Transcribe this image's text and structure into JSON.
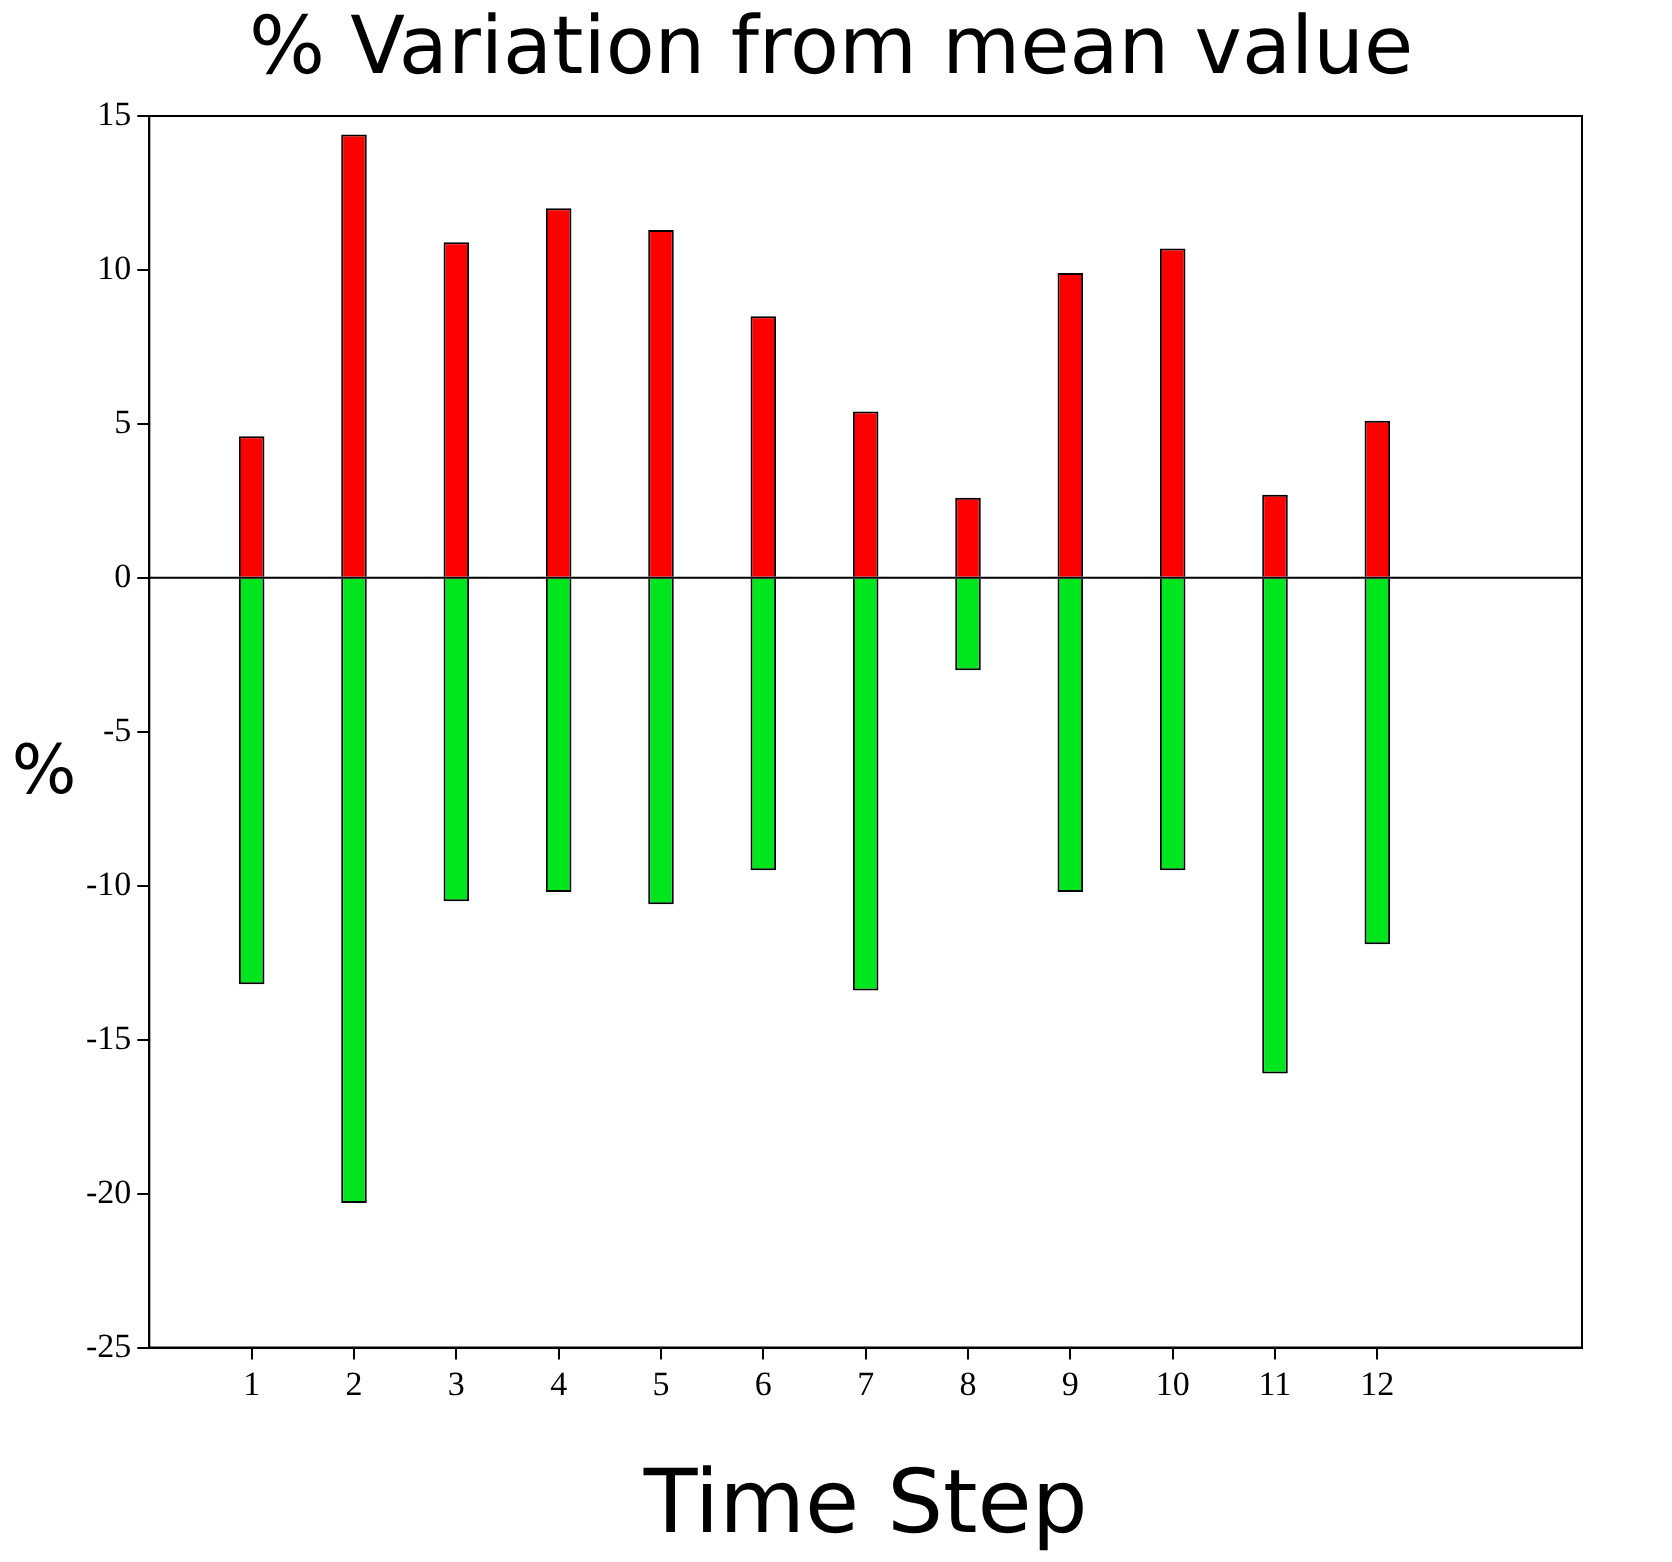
{
  "chart_data": {
    "type": "bar",
    "title": "% Variation from mean value",
    "xlabel": "Time Step",
    "ylabel": "%",
    "x": [
      1,
      2,
      3,
      4,
      5,
      6,
      7,
      8,
      9,
      10,
      11,
      12
    ],
    "xlim": [
      0,
      14
    ],
    "xticks": [
      1,
      2,
      3,
      4,
      5,
      6,
      7,
      8,
      9,
      10,
      11,
      12
    ],
    "ylim": [
      -25,
      15
    ],
    "yticks": [
      -25,
      -20,
      -15,
      -10,
      -5,
      0,
      5,
      10,
      15
    ],
    "stacked": true,
    "grid": false,
    "legend": false,
    "ref_lines": [
      {
        "axis": "y",
        "value": 0,
        "color": "#000000"
      }
    ],
    "series": [
      {
        "color": "#ff0000",
        "values": [
          4.6,
          14.4,
          10.9,
          12.0,
          11.3,
          8.5,
          5.4,
          2.6,
          9.9,
          10.7,
          2.7,
          5.1
        ]
      },
      {
        "color": "#00e61e",
        "values": [
          -13.2,
          -20.3,
          -10.5,
          -10.2,
          -10.6,
          -9.5,
          -13.4,
          -3.0,
          -10.2,
          -9.5,
          -16.1,
          -11.9
        ]
      }
    ]
  }
}
